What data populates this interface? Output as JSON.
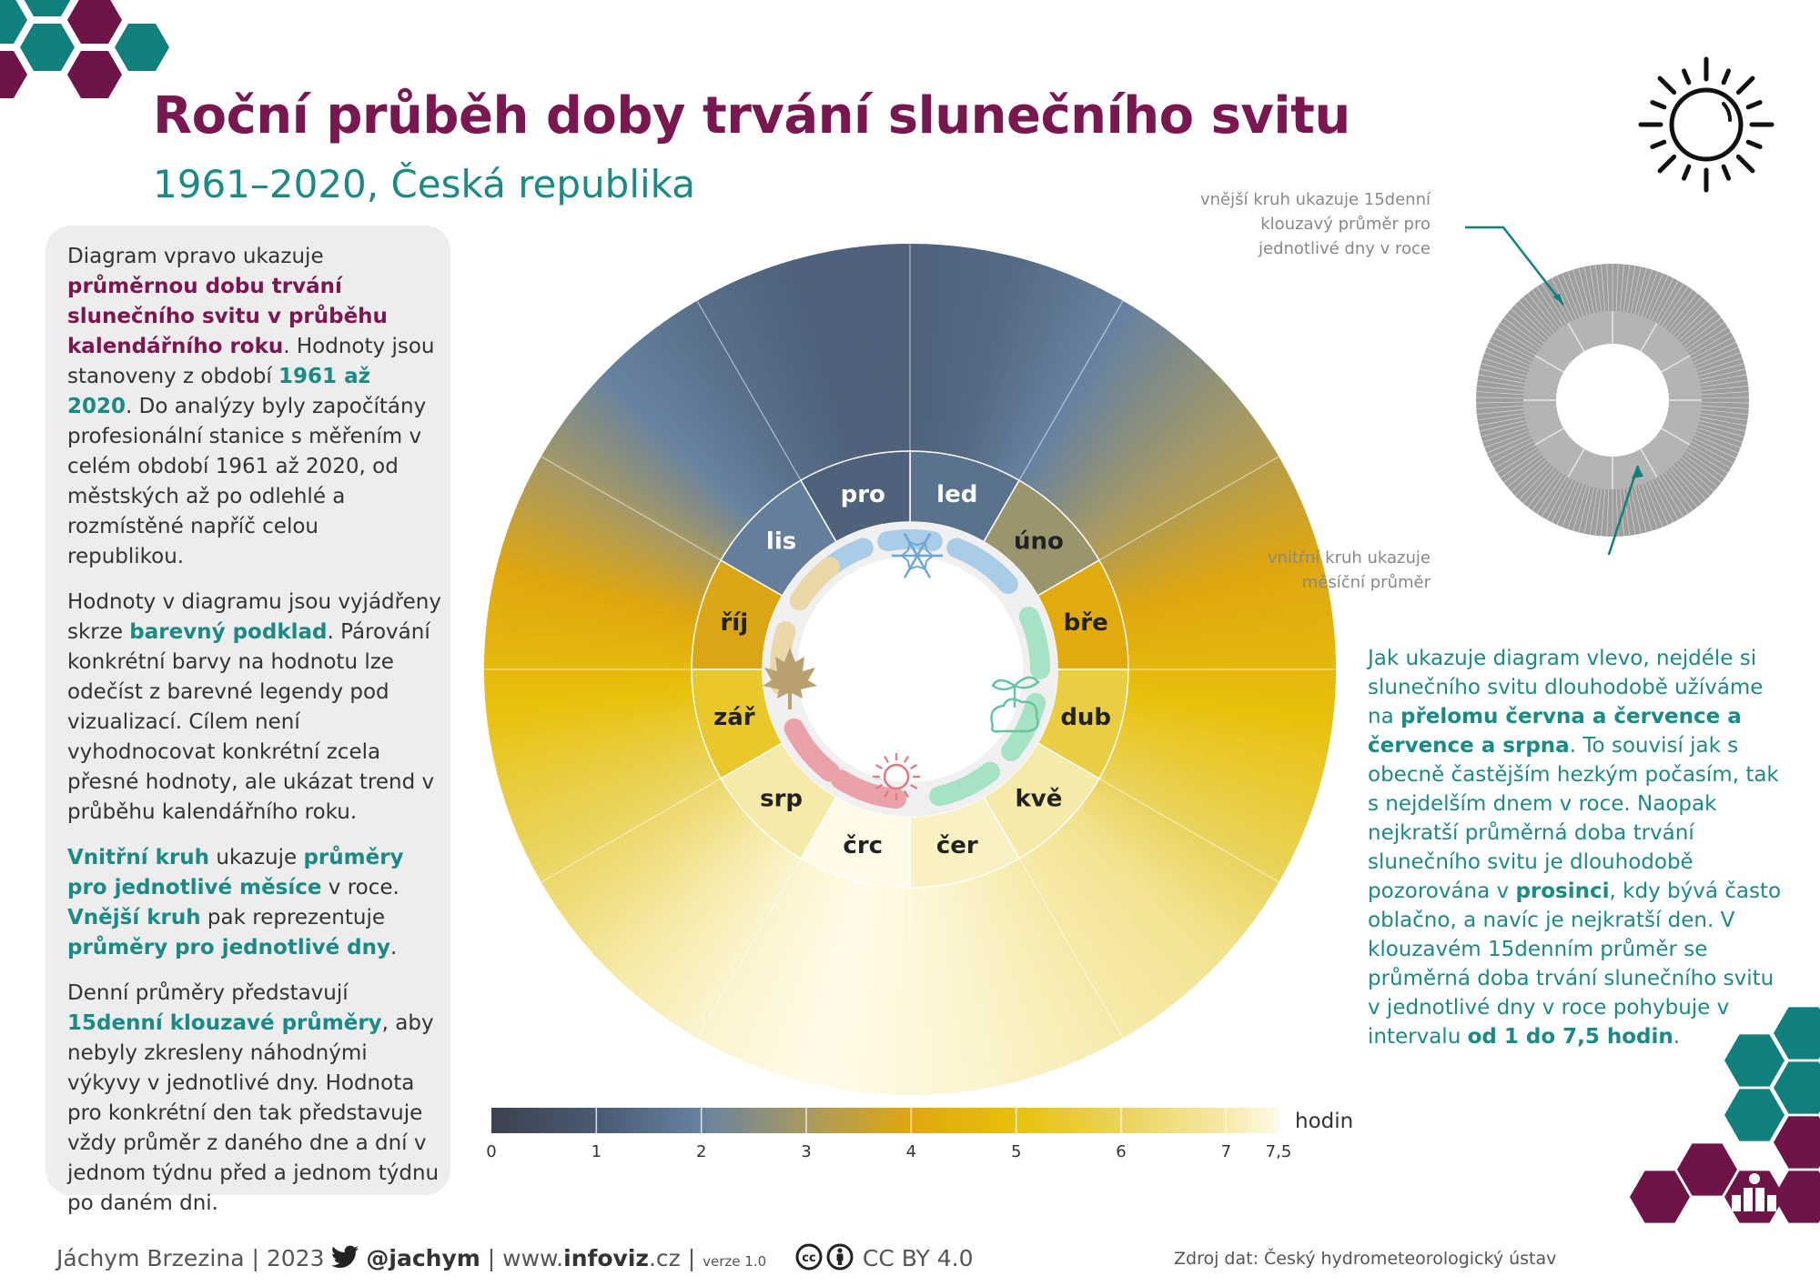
{
  "title": "Roční průběh doby trvání slunečního svitu",
  "subtitle": "1961–2020, Česká republika",
  "left_panel": [
    [
      {
        "t": "Diagram vpravo ukazuje "
      },
      {
        "t": "průměrnou dobu trvání slunečního svitu v průběhu kalendářního roku",
        "s": "p"
      },
      {
        "t": ". Hodnoty jsou stanoveny z období "
      },
      {
        "t": "1961 až 2020",
        "s": "t"
      },
      {
        "t": ". Do analýzy byly započítány profesionální stanice s měřením v celém období 1961 až 2020, od městských až po odlehlé a rozmístěné napříč celou republikou."
      }
    ],
    [
      {
        "t": "Hodnoty v diagramu jsou vyjádřeny skrze "
      },
      {
        "t": "barevný podklad",
        "s": "t"
      },
      {
        "t": ". Párování konkrétní barvy na hodnotu lze odečíst z barevné legendy pod vizualizací. Cílem není vyhodnocovat konkrétní zcela přesné hodnoty, ale ukázat trend v průběhu kalendářního roku."
      }
    ],
    [
      {
        "t": "Vnitřní kruh",
        "s": "t"
      },
      {
        "t": " ukazuje "
      },
      {
        "t": "průměry pro jednotlivé měsíce",
        "s": "t"
      },
      {
        "t": " v roce. "
      },
      {
        "t": "Vnější kruh",
        "s": "t"
      },
      {
        "t": " pak reprezentuje "
      },
      {
        "t": "průměry pro jednotlivé dny",
        "s": "t"
      },
      {
        "t": "."
      }
    ],
    [
      {
        "t": "Denní průměry představují "
      },
      {
        "t": "15denní klouzavé průměry",
        "s": "t"
      },
      {
        "t": ", aby nebyly zkresleny náhodnými výkyvy v jednotlivé dny. Hodnota pro konkrétní den tak představuje vždy průměr z daného dne a dní v jednom týdnu před a jednom týdnu po daném dni."
      }
    ]
  ],
  "right_text": [
    {
      "t": "Jak ukazuje diagram vlevo, nejdéle si slunečního svitu dlouhodobě užíváme na "
    },
    {
      "t": "přelomu června a července a července a srpna",
      "s": "b"
    },
    {
      "t": ". To souvisí jak s obecně častějším hezkým počasím, tak s nejdelším dnem v roce. Naopak nejkratší průměrná doba trvání slunečního svitu je dlouhodobě pozorována v "
    },
    {
      "t": "prosinci",
      "s": "b"
    },
    {
      "t": ", kdy bývá často oblačno, a navíc je nejkratší den. V klouzavém 15denním průměr se průměrná doba trvání slunečního svitu v jednotlivé dny v roce pohybuje v intervalu "
    },
    {
      "t": "od 1 do 7,5 hodin",
      "s": "b"
    },
    {
      "t": "."
    }
  ],
  "explainer": {
    "outer_lines": [
      "vnější kruh ukazuje 15denní",
      "klouzavý průměr pro",
      "jednotlivé dny v roce"
    ],
    "inner_lines": [
      "vnitřní kruh ukazuje",
      "měsíční průměr"
    ]
  },
  "legend": {
    "unit": "hodin",
    "ticks": [
      {
        "value": 0,
        "label": "0"
      },
      {
        "value": 1,
        "label": "1"
      },
      {
        "value": 2,
        "label": "2"
      },
      {
        "value": 3,
        "label": "3"
      },
      {
        "value": 4,
        "label": "4"
      },
      {
        "value": 5,
        "label": "5"
      },
      {
        "value": 6,
        "label": "6"
      },
      {
        "value": 7,
        "label": "7"
      },
      {
        "value": 7.5,
        "label": "7,5"
      }
    ],
    "colorscale": [
      {
        "v": 0,
        "c": "#3c424f"
      },
      {
        "v": 1,
        "c": "#4a5a72"
      },
      {
        "v": 2,
        "c": "#6782a0"
      },
      {
        "v": 3,
        "c": "#a89a62"
      },
      {
        "v": 4,
        "c": "#e0a70e"
      },
      {
        "v": 5,
        "c": "#e8c10c"
      },
      {
        "v": 6,
        "c": "#ead35a"
      },
      {
        "v": 7,
        "c": "#f6eaa8"
      },
      {
        "v": 7.5,
        "c": "#fffbe8"
      }
    ]
  },
  "chart_data": {
    "type": "radial-heatmap",
    "title": "Roční průběh doby trvání slunečního svitu",
    "subtitle": "1961–2020, Česká republika",
    "unit": "hodin",
    "range": [
      0,
      7.5
    ],
    "direction": "clockwise, January starting at top",
    "months": [
      "led",
      "úno",
      "bře",
      "dub",
      "kvě",
      "čer",
      "črc",
      "srp",
      "zář",
      "říj",
      "lis",
      "pro"
    ],
    "month_values": [
      1.6,
      2.8,
      4.1,
      5.7,
      7.0,
      7.2,
      7.5,
      7.0,
      5.4,
      3.9,
      1.9,
      1.2
    ],
    "daily_profile": {
      "day_of_year": [
        1,
        15,
        32,
        46,
        60,
        74,
        91,
        105,
        121,
        135,
        152,
        166,
        182,
        196,
        213,
        227,
        244,
        258,
        274,
        288,
        305,
        319,
        335,
        349,
        365
      ],
      "hours": [
        1.2,
        1.4,
        2.0,
        2.6,
        3.2,
        3.9,
        4.6,
        5.3,
        6.0,
        6.7,
        7.0,
        7.2,
        7.4,
        7.5,
        7.3,
        7.0,
        6.2,
        5.6,
        4.7,
        4.0,
        2.9,
        2.0,
        1.5,
        1.2,
        1.2
      ]
    },
    "seasons": [
      {
        "name": "winter",
        "icon": "snowflake-icon",
        "color": "#a9cde9"
      },
      {
        "name": "spring",
        "icon": "seedling-icon",
        "color": "#a6e2c4"
      },
      {
        "name": "summer",
        "icon": "sun-icon",
        "color": "#eaa2a8"
      },
      {
        "name": "autumn",
        "icon": "maple-leaf-icon",
        "color": "#ead8a8"
      }
    ]
  },
  "footer": {
    "author": "Jáchym Brzezina | 2023",
    "twitter": "@jachym",
    "site_pre": "www.",
    "site_bold": "infoviz",
    "site_post": ".cz",
    "version": "verze 1.0",
    "license": "CC BY 4.0"
  },
  "source": "Zdroj dat: Český hydrometeorologický ústav",
  "colors": {
    "accent_purple": "#7a1750",
    "accent_teal": "#1a8a86",
    "hex_teal": "#11807c",
    "hex_purple": "#6e1447"
  }
}
